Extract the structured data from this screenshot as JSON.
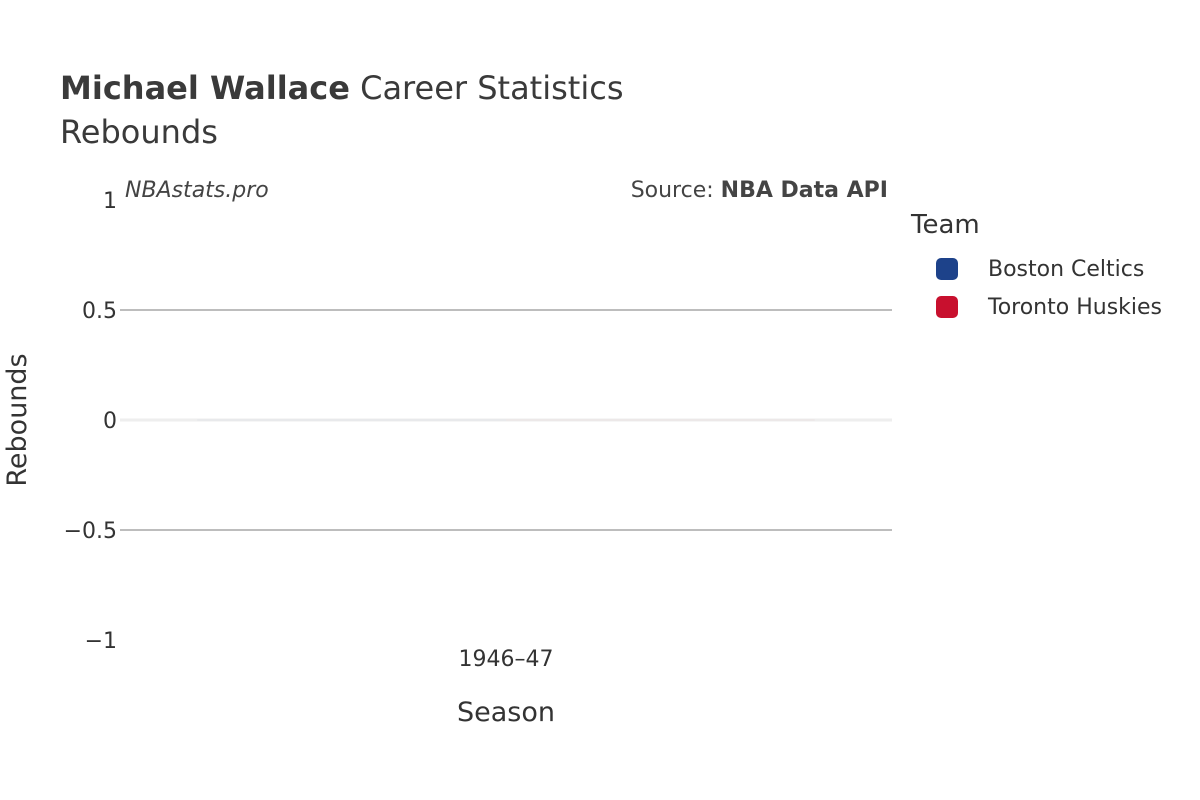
{
  "header": {
    "player_name": "Michael Wallace",
    "title_suffix": "Career Statistics",
    "subtitle": "Rebounds"
  },
  "watermark": "NBAstats.pro",
  "source": {
    "prefix": "Source: ",
    "name": "NBA Data API"
  },
  "legend": {
    "title": "Team",
    "items": [
      {
        "label": "Boston Celtics",
        "color": "#1d428a"
      },
      {
        "label": "Toronto Huskies",
        "color": "#c8102e"
      }
    ]
  },
  "chart_data": {
    "type": "bar",
    "title": "Michael Wallace Career Statistics",
    "subtitle": "Rebounds",
    "xlabel": "Season",
    "ylabel": "Rebounds",
    "categories": [
      "1946–47"
    ],
    "ylim": [
      -1,
      1
    ],
    "yticks": [
      1,
      0.5,
      0,
      -0.5,
      -1
    ],
    "ytick_labels": [
      "1",
      "0.5",
      "0",
      "−0.5",
      "−1"
    ],
    "grid": true,
    "legend_position": "right",
    "series": [
      {
        "name": "Boston Celtics",
        "color": "#1d428a",
        "values": [
          0
        ]
      },
      {
        "name": "Toronto Huskies",
        "color": "#c8102e",
        "values": [
          0
        ]
      }
    ]
  }
}
